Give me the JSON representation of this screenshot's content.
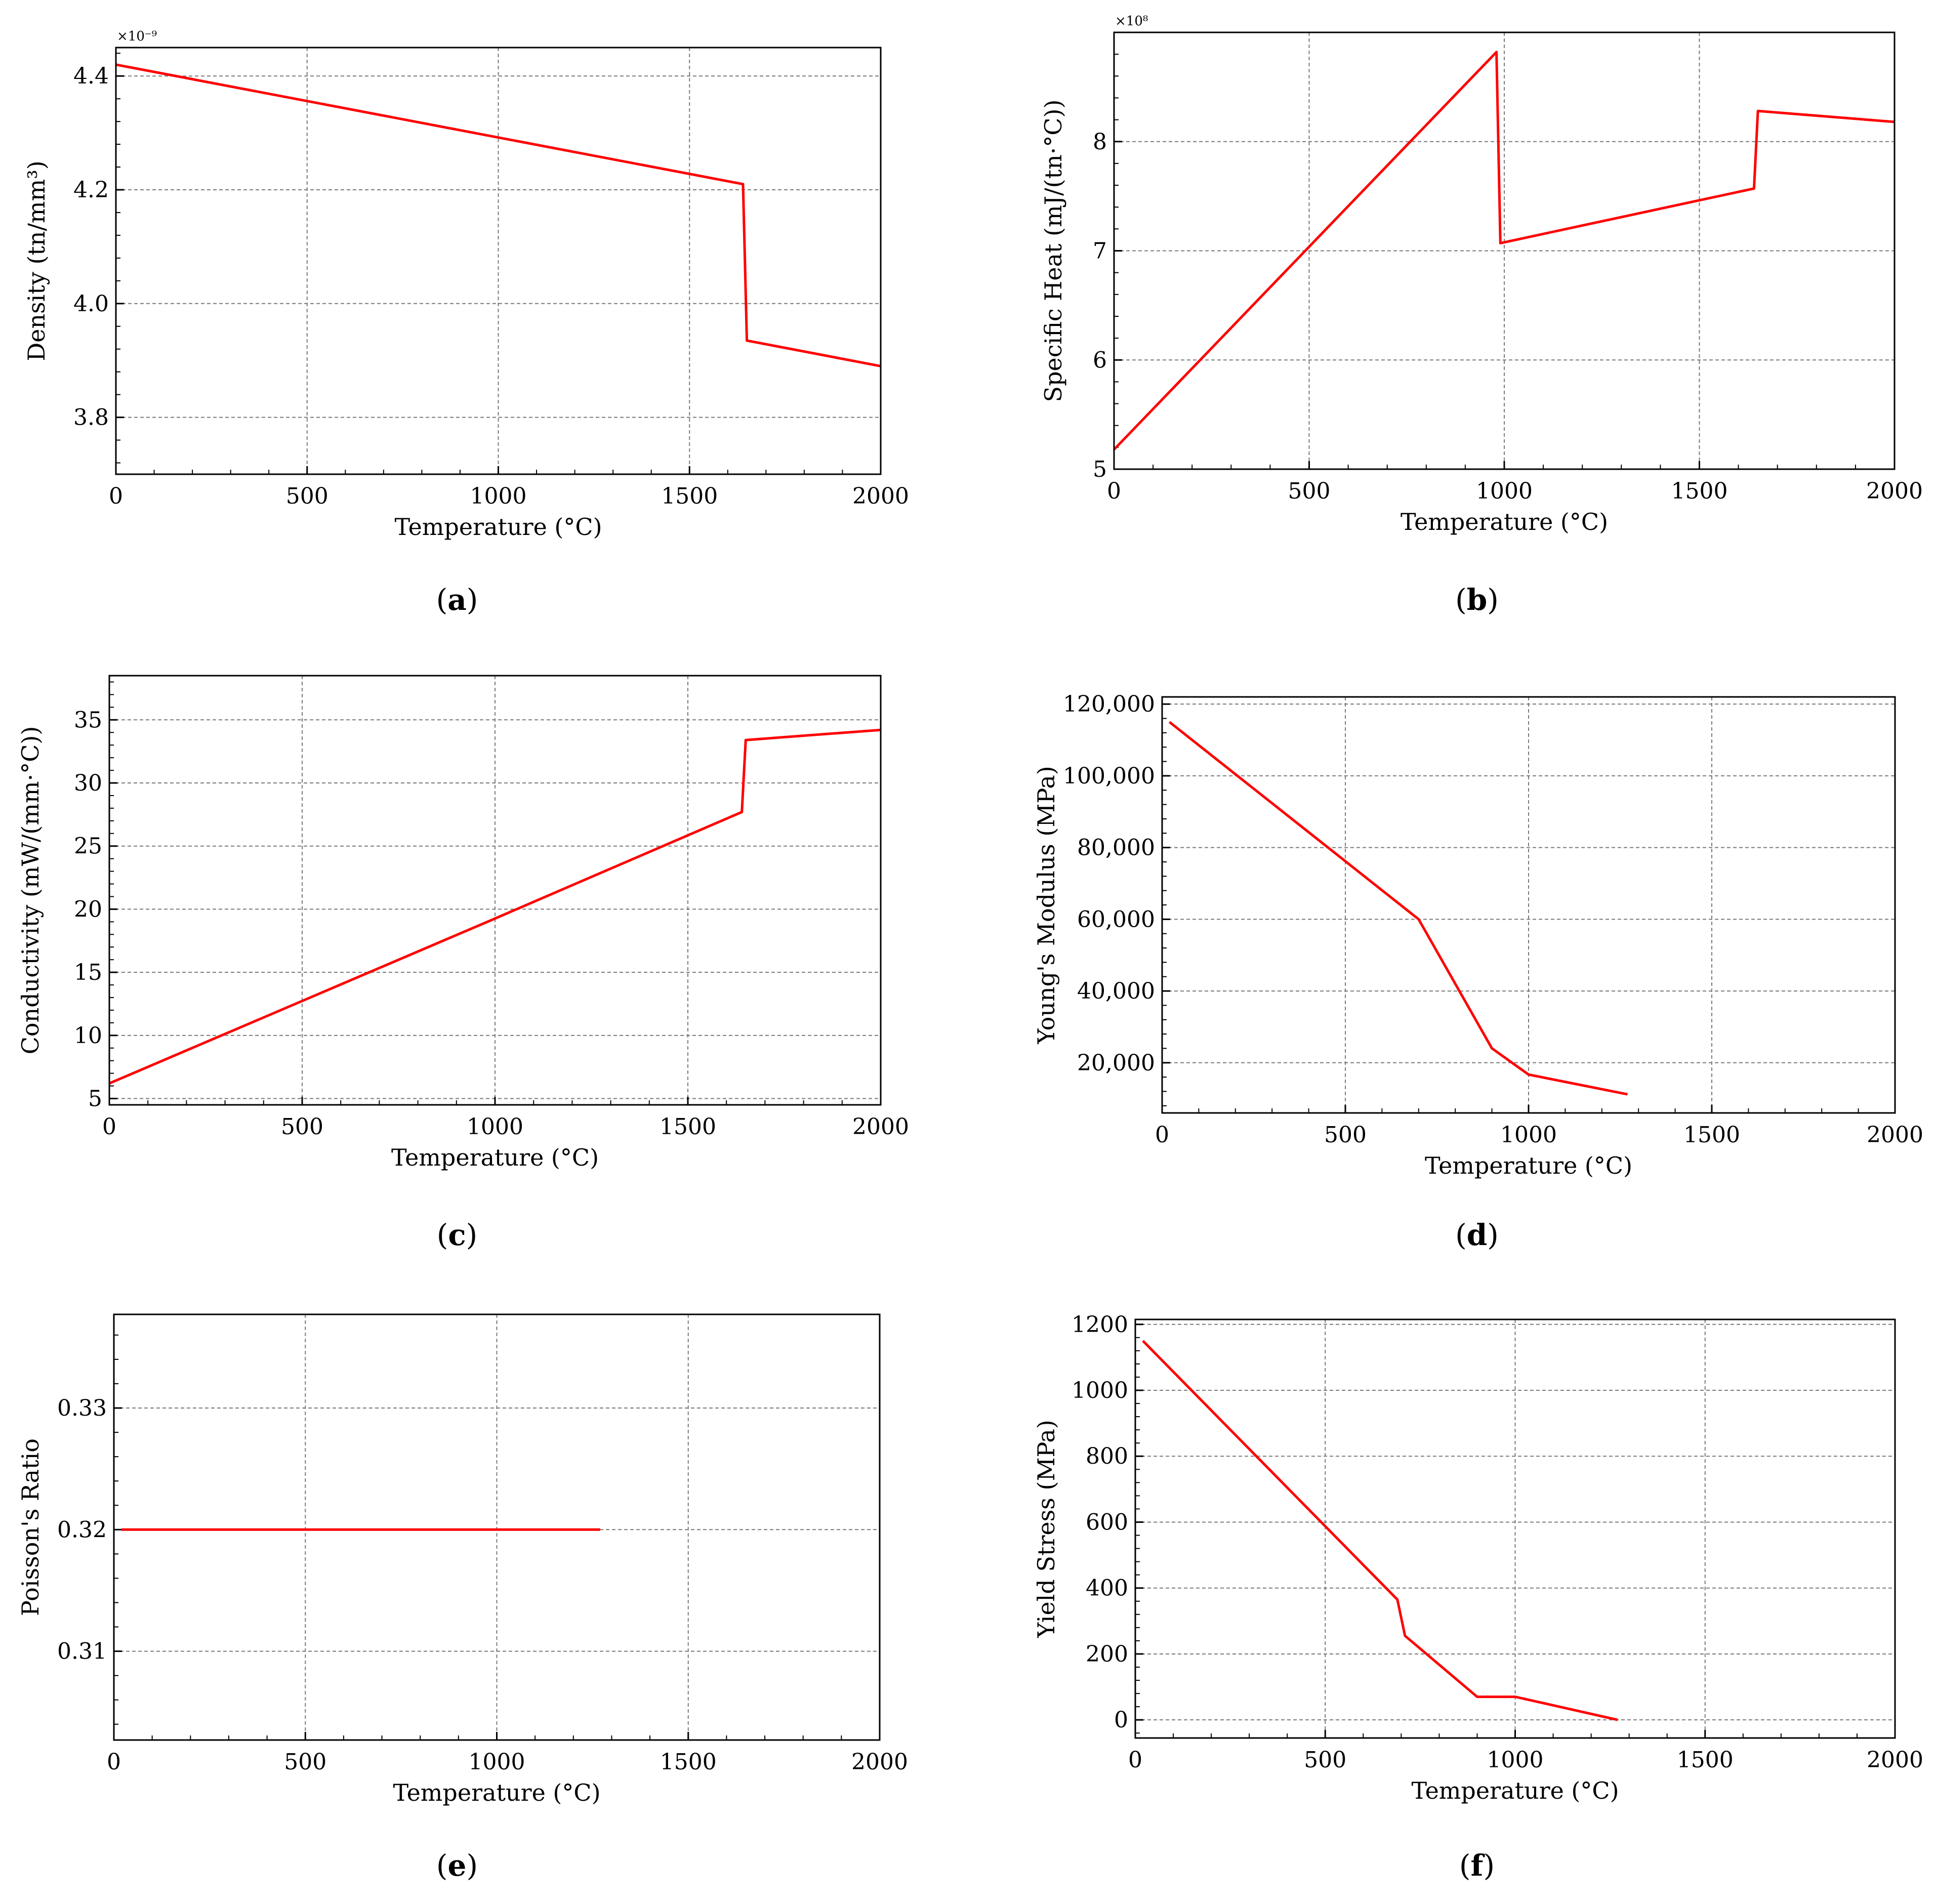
{
  "chart_data": [
    {
      "id": "a",
      "type": "line",
      "caption_letter": "a",
      "xlabel": "Temperature (°C)",
      "ylabel": "Density (tn/mm³)",
      "ylabel_text": "Density",
      "y_multiplier": "×10⁻⁹",
      "xlim": [
        0,
        2000
      ],
      "ylim": [
        3.7,
        4.45
      ],
      "xticks": [
        0,
        500,
        1000,
        1500,
        2000
      ],
      "xtick_labels": [
        "0",
        "500",
        "1000",
        "1500",
        "2000"
      ],
      "yticks": [
        3.8,
        4.0,
        4.2,
        4.4
      ],
      "ytick_labels": [
        "3.8",
        "4.0",
        "4.2",
        "4.4"
      ],
      "x": [
        0,
        1640,
        1650,
        2000
      ],
      "y": [
        4.42,
        4.21,
        3.935,
        3.89
      ]
    },
    {
      "id": "b",
      "type": "line",
      "caption_letter": "b",
      "xlabel": "Temperature (°C)",
      "ylabel": "Specific Heat (mJ/(tn·°C))",
      "ylabel_text": "Specific Heat",
      "y_multiplier": "×10⁸",
      "xlim": [
        0,
        2000
      ],
      "ylim": [
        5.0,
        9.0
      ],
      "xticks": [
        0,
        500,
        1000,
        1500,
        2000
      ],
      "xtick_labels": [
        "0",
        "500",
        "1000",
        "1500",
        "2000"
      ],
      "yticks": [
        5,
        6,
        7,
        8
      ],
      "ytick_labels": [
        "5",
        "6",
        "7",
        "8"
      ],
      "x": [
        0,
        980,
        990,
        1640,
        1650,
        2000
      ],
      "y": [
        5.18,
        8.82,
        7.07,
        7.57,
        8.28,
        8.18
      ]
    },
    {
      "id": "c",
      "type": "line",
      "caption_letter": "c",
      "xlabel": "Temperature (°C)",
      "ylabel": "Conductivity (mW/(mm·°C))",
      "ylabel_text": "Conductivity",
      "xlim": [
        0,
        2000
      ],
      "ylim": [
        4.5,
        38.5
      ],
      "xticks": [
        0,
        500,
        1000,
        1500,
        2000
      ],
      "xtick_labels": [
        "0",
        "500",
        "1000",
        "1500",
        "2000"
      ],
      "yticks": [
        5,
        10,
        15,
        20,
        25,
        30,
        35
      ],
      "ytick_labels": [
        "5",
        "10",
        "15",
        "20",
        "25",
        "30",
        "35"
      ],
      "x": [
        0,
        980,
        1640,
        1650,
        2000
      ],
      "y": [
        6.2,
        19.0,
        27.7,
        33.4,
        34.2
      ]
    },
    {
      "id": "d",
      "type": "line",
      "caption_letter": "d",
      "xlabel": "Temperature (°C)",
      "ylabel": "Young's Modulus (MPa)",
      "ylabel_text": "Young’s Modulus",
      "xlim": [
        0,
        2000
      ],
      "ylim": [
        6000,
        122000
      ],
      "xticks": [
        0,
        500,
        1000,
        1500,
        2000
      ],
      "xtick_labels": [
        "0",
        "500",
        "1000",
        "1500",
        "2000"
      ],
      "yticks": [
        20000,
        40000,
        60000,
        80000,
        100000,
        120000
      ],
      "ytick_labels": [
        "20,000",
        "40,000",
        "60,000",
        "80,000",
        "100,000",
        "120,000"
      ],
      "x": [
        20,
        700,
        900,
        1000,
        1270
      ],
      "y": [
        115000,
        60000,
        24000,
        16700,
        11200
      ]
    },
    {
      "id": "e",
      "type": "line",
      "caption_letter": "e",
      "xlabel": "Temperature (°C)",
      "ylabel": "Poisson's Ratio",
      "ylabel_text": "Poisson’s Ratio",
      "xlim": [
        0,
        2000
      ],
      "ylim": [
        0.3027,
        0.3377
      ],
      "xticks": [
        0,
        500,
        1000,
        1500,
        2000
      ],
      "xtick_labels": [
        "0",
        "500",
        "1000",
        "1500",
        "2000"
      ],
      "yticks": [
        0.31,
        0.32,
        0.33
      ],
      "ytick_labels": [
        "0.31",
        "0.32",
        "0.33"
      ],
      "x": [
        20,
        1270
      ],
      "y": [
        0.32,
        0.32
      ]
    },
    {
      "id": "f",
      "type": "line",
      "caption_letter": "f",
      "xlabel": "Temperature (°C)",
      "ylabel": "Yield Stress (MPa)",
      "ylabel_text": "Yield Stress",
      "xlim": [
        0,
        2000
      ],
      "ylim": [
        -55,
        1215
      ],
      "xticks": [
        0,
        500,
        1000,
        1500,
        2000
      ],
      "xtick_labels": [
        "0",
        "500",
        "1000",
        "1500",
        "2000"
      ],
      "yticks": [
        0,
        200,
        400,
        600,
        800,
        1000,
        1200
      ],
      "ytick_labels": [
        "0",
        "200",
        "400",
        "600",
        "800",
        "1000",
        "1200"
      ],
      "x": [
        20,
        690,
        710,
        900,
        1000,
        1270
      ],
      "y": [
        1150,
        365,
        255,
        70,
        70,
        0
      ]
    }
  ]
}
